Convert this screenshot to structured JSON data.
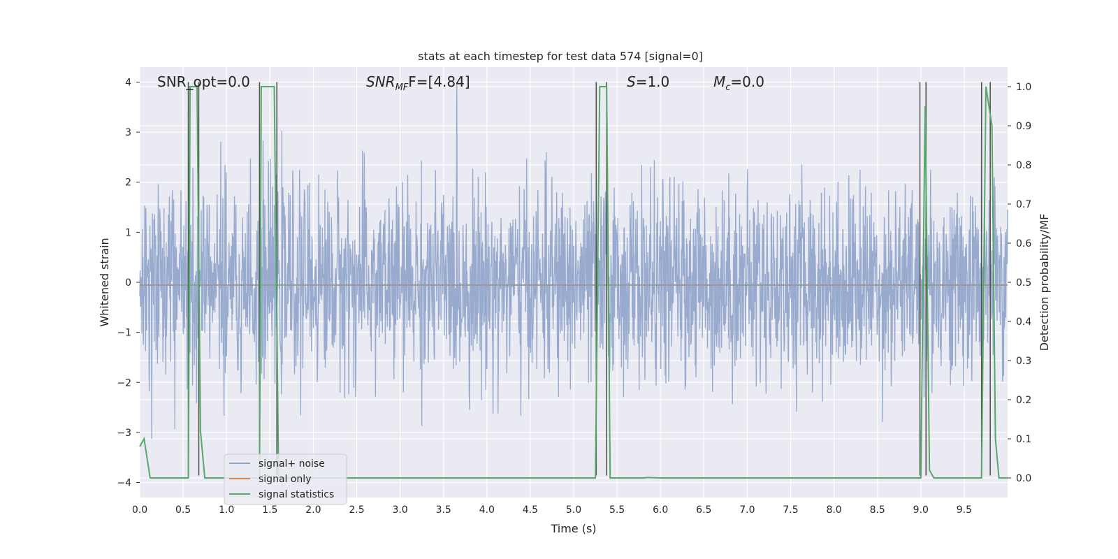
{
  "chart_data": {
    "type": "line",
    "title": "stats at each timestep for test data 574 [signal=0]",
    "xlabel": "Time (s)",
    "ylabel": "Whitened strain",
    "ylabel_right": "Detection probability/MF",
    "xlim": [
      0.0,
      10.0
    ],
    "ylim": [
      -4.3,
      4.3
    ],
    "ylim_right": [
      -0.05,
      1.05
    ],
    "x_ticks": [
      "0.0",
      "0.5",
      "1.0",
      "1.5",
      "2.0",
      "2.5",
      "3.0",
      "3.5",
      "4.0",
      "4.5",
      "5.0",
      "5.5",
      "6.0",
      "6.5",
      "7.0",
      "7.5",
      "8.0",
      "8.5",
      "9.0",
      "9.5"
    ],
    "y_ticks": [
      "4",
      "3",
      "2",
      "1",
      "0",
      "−1",
      "−2",
      "−3",
      "−4"
    ],
    "y_ticks_right": [
      "1.0",
      "0.9",
      "0.8",
      "0.7",
      "0.6",
      "0.5",
      "0.4",
      "0.3",
      "0.2",
      "0.1",
      "0.0"
    ],
    "annotations": {
      "snr_opt": "SNR_opt=0.0",
      "snr_mf_base": "SNR",
      "snr_mf_sub": "MF",
      "snr_mf_tail": "F=[4.84]",
      "s_var": "S",
      "s_tail": "=1.0",
      "mc_var": "M",
      "mc_sub": "c",
      "mc_tail": "=0.0"
    },
    "legend": [
      "signal+ noise",
      "signal only",
      "signal statistics"
    ],
    "legend_position": "lower-left",
    "grid": true,
    "colors": {
      "signal_noise": "#8fa4cb",
      "signal_only": "#dd8452",
      "signal_stats": "#55a868",
      "vlines": "#555555",
      "background": "#eaeaf2",
      "grid": "#ffffff"
    },
    "series": [
      {
        "name": "signal+ noise",
        "description_of_values": "whitened strain noise, roughly within -3.7 to 4.0",
        "envelope_typical": [
          -2.0,
          2.2
        ],
        "extreme_values": {
          "min": -3.7,
          "max": 4.0
        }
      },
      {
        "name": "signal only",
        "values_constant": 0.0
      },
      {
        "name": "signal statistics",
        "x": [
          0.0,
          0.05,
          0.12,
          0.56,
          0.58,
          0.62,
          0.66,
          0.7,
          0.75,
          0.8,
          1.38,
          1.4,
          1.45,
          1.55,
          1.6,
          1.65,
          5.25,
          5.3,
          5.38,
          5.42,
          5.5,
          5.8,
          5.85,
          6.0,
          9.0,
          9.05,
          9.1,
          9.15,
          9.7,
          9.75,
          9.82,
          9.86,
          9.9,
          10.0
        ],
        "y": [
          0.08,
          0.1,
          0.0,
          0.0,
          1.0,
          1.0,
          1.0,
          0.12,
          0.0,
          0.0,
          0.0,
          1.0,
          1.0,
          1.0,
          0.0,
          0.0,
          0.0,
          1.0,
          1.0,
          0.0,
          0.0,
          0.0,
          0.001,
          0.0,
          0.0,
          0.95,
          0.02,
          0.0,
          0.0,
          1.0,
          0.9,
          0.1,
          0.0,
          0.0
        ]
      }
    ],
    "vertical_markers": [
      0.56,
      0.68,
      1.38,
      1.58,
      5.26,
      5.38,
      8.99,
      9.06,
      9.7,
      9.8
    ]
  }
}
